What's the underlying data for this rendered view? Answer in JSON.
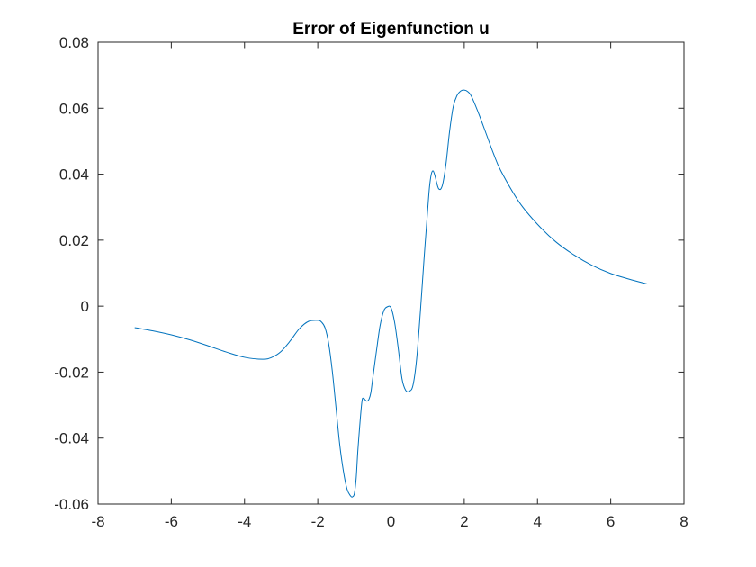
{
  "chart_data": {
    "type": "line",
    "title": "Error of Eigenfunction u",
    "xlabel": "",
    "ylabel": "",
    "xlim": [
      -8,
      8
    ],
    "ylim": [
      -0.06,
      0.08
    ],
    "xticks": [
      -8,
      -6,
      -4,
      -2,
      0,
      2,
      4,
      6,
      8
    ],
    "xtick_labels": [
      "-8",
      "-6",
      "-4",
      "-2",
      "0",
      "2",
      "4",
      "6",
      "8"
    ],
    "yticks": [
      -0.06,
      -0.04,
      -0.02,
      0,
      0.02,
      0.04,
      0.06,
      0.08
    ],
    "ytick_labels": [
      "-0.06",
      "-0.04",
      "-0.02",
      "0",
      "0.02",
      "0.04",
      "0.06",
      "0.08"
    ],
    "grid": false,
    "series": [
      {
        "color": "#0072BD",
        "x": [
          -7.0,
          -6.5,
          -6.0,
          -5.5,
          -5.0,
          -4.5,
          -4.0,
          -3.5,
          -3.25,
          -3.0,
          -2.75,
          -2.5,
          -2.25,
          -2.0,
          -1.9,
          -1.8,
          -1.7,
          -1.6,
          -1.5,
          -1.4,
          -1.3,
          -1.2,
          -1.1,
          -1.05,
          -1.0,
          -0.95,
          -0.9,
          -0.8,
          -0.75,
          -0.7,
          -0.65,
          -0.6,
          -0.55,
          -0.5,
          -0.4,
          -0.3,
          -0.2,
          -0.1,
          0.0,
          0.1,
          0.2,
          0.3,
          0.4,
          0.5,
          0.6,
          0.7,
          0.8,
          0.9,
          1.0,
          1.05,
          1.1,
          1.15,
          1.2,
          1.3,
          1.4,
          1.5,
          1.6,
          1.7,
          1.8,
          1.9,
          2.0,
          2.1,
          2.2,
          2.4,
          2.6,
          2.8,
          3.0,
          3.5,
          4.0,
          4.5,
          5.0,
          5.5,
          6.0,
          6.5,
          7.0
        ],
        "y": [
          -0.0065,
          -0.0075,
          -0.0087,
          -0.0102,
          -0.012,
          -0.0139,
          -0.0155,
          -0.0161,
          -0.0155,
          -0.0137,
          -0.0105,
          -0.0068,
          -0.0046,
          -0.0043,
          -0.0048,
          -0.0066,
          -0.0115,
          -0.02,
          -0.031,
          -0.042,
          -0.05,
          -0.0555,
          -0.0576,
          -0.0578,
          -0.0568,
          -0.052,
          -0.043,
          -0.0295,
          -0.028,
          -0.0285,
          -0.0288,
          -0.0282,
          -0.0262,
          -0.022,
          -0.0138,
          -0.006,
          -0.0015,
          -0.0002,
          -0.0005,
          -0.005,
          -0.013,
          -0.022,
          -0.0255,
          -0.0258,
          -0.024,
          -0.016,
          -0.002,
          0.014,
          0.029,
          0.036,
          0.04,
          0.041,
          0.0395,
          0.0356,
          0.0365,
          0.043,
          0.053,
          0.0605,
          0.0638,
          0.0652,
          0.0655,
          0.065,
          0.0635,
          0.0582,
          0.0522,
          0.0462,
          0.041,
          0.0315,
          0.0248,
          0.0195,
          0.0155,
          0.0123,
          0.0099,
          0.0082,
          0.0067
        ]
      }
    ]
  }
}
